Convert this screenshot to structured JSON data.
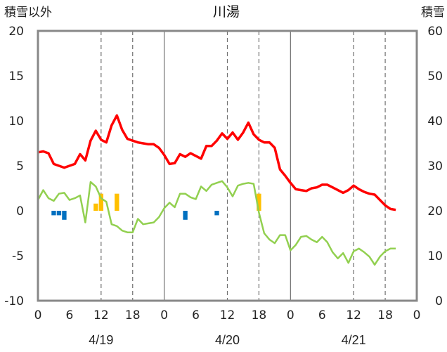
{
  "chart_data": {
    "type": "line",
    "title": "川湯",
    "ylabel_left": "積雪以外",
    "ylabel_right": "積雪",
    "ylim_left": [
      -10,
      20
    ],
    "ylim_right": [
      0,
      60
    ],
    "yticks_left": [
      20,
      15,
      10,
      5,
      0,
      -5,
      -10
    ],
    "yticks_right": [
      60,
      50,
      40,
      30,
      20,
      10,
      0
    ],
    "x_range_hours": [
      0,
      72
    ],
    "x_tick_labels": [
      "0",
      "6",
      "12",
      "18",
      "0",
      "6",
      "12",
      "18",
      "0",
      "6",
      "12",
      "18",
      "0"
    ],
    "date_labels": [
      {
        "text": "4/19",
        "hour": 12
      },
      {
        "text": "4/20",
        "hour": 36
      },
      {
        "text": "4/21",
        "hour": 60
      }
    ],
    "grid": "dashed vertical at 12h and 18h, solid at day boundaries",
    "series": [
      {
        "role": "red",
        "color": "#ff0000",
        "x": [
          0,
          1,
          2,
          3,
          4,
          5,
          6,
          7,
          8,
          9,
          10,
          11,
          12,
          13,
          14,
          15,
          16,
          17,
          18,
          19,
          20,
          21,
          22,
          23,
          24,
          25,
          26,
          27,
          28,
          29,
          30,
          31,
          32,
          33,
          34,
          35,
          36,
          37,
          38,
          39,
          40,
          41,
          42,
          43,
          44,
          45,
          46,
          47,
          48,
          49,
          50,
          51,
          52,
          53,
          54,
          55,
          56,
          57,
          58,
          59,
          60,
          61,
          62,
          63,
          64,
          65,
          66,
          67,
          68
        ],
        "y": [
          6.5,
          6.6,
          6.4,
          5.2,
          5.0,
          4.8,
          5.0,
          5.2,
          6.3,
          5.6,
          7.8,
          8.9,
          7.9,
          7.6,
          9.5,
          10.6,
          9.0,
          8.0,
          7.8,
          7.6,
          7.5,
          7.4,
          7.4,
          7.0,
          6.2,
          5.2,
          5.3,
          6.3,
          6.0,
          6.4,
          6.1,
          5.8,
          7.2,
          7.2,
          7.8,
          8.6,
          8.0,
          8.7,
          7.9,
          8.7,
          9.8,
          8.5,
          7.9,
          7.6,
          7.6,
          7.0,
          4.6,
          3.9,
          3.1,
          2.4,
          2.3,
          2.2,
          2.5,
          2.6,
          2.9,
          2.9,
          2.6,
          2.3,
          2.0,
          2.3,
          2.8,
          2.4,
          2.1,
          1.9,
          1.8,
          1.2,
          0.6,
          0.2,
          0.1
        ]
      },
      {
        "role": "green",
        "color": "#92d050",
        "x": [
          0,
          1,
          2,
          3,
          4,
          5,
          6,
          7,
          8,
          9,
          10,
          11,
          12,
          13,
          14,
          15,
          16,
          17,
          18,
          19,
          20,
          21,
          22,
          23,
          24,
          25,
          26,
          27,
          28,
          29,
          30,
          31,
          32,
          33,
          34,
          35,
          36,
          37,
          38,
          39,
          40,
          41,
          42,
          43,
          44,
          45,
          46,
          47,
          48,
          49,
          50,
          51,
          52,
          53,
          54,
          55,
          56,
          57,
          58,
          59,
          60,
          61,
          62,
          63,
          64,
          65,
          66,
          67,
          68
        ],
        "y": [
          1.2,
          2.3,
          1.4,
          1.1,
          1.9,
          2.0,
          1.2,
          1.4,
          1.7,
          -1.3,
          3.2,
          2.7,
          1.4,
          1.0,
          -1.5,
          -1.7,
          -2.2,
          -2.4,
          -2.4,
          -0.9,
          -1.5,
          -1.4,
          -1.3,
          -0.7,
          0.3,
          0.9,
          0.4,
          1.9,
          1.9,
          1.5,
          1.3,
          2.7,
          2.2,
          2.9,
          3.1,
          3.3,
          2.6,
          1.6,
          2.8,
          3.0,
          3.1,
          3.0,
          -0.2,
          -2.5,
          -3.2,
          -3.6,
          -2.7,
          -2.7,
          -4.4,
          -3.8,
          -2.9,
          -2.8,
          -3.2,
          -3.5,
          -2.9,
          -3.5,
          -4.6,
          -5.3,
          -4.7,
          -5.8,
          -4.5,
          -4.2,
          -4.6,
          -5.1,
          -6.0,
          -5.1,
          -4.5,
          -4.2,
          -4.2
        ]
      },
      {
        "role": "purple-baseline",
        "color": "#7030a0",
        "x": [
          0,
          68
        ],
        "y": [
          -10,
          -10
        ]
      }
    ],
    "bars_positive": {
      "color": "#ffc000",
      "x": [
        11,
        12,
        15,
        42
      ],
      "y": [
        0.8,
        1.9,
        1.9,
        1.9
      ]
    },
    "bars_negative": {
      "color": "#0070c0",
      "x": [
        3,
        4,
        5,
        28,
        34
      ],
      "y": [
        -0.5,
        -0.5,
        -1.0,
        -1.0,
        -0.5
      ]
    }
  }
}
